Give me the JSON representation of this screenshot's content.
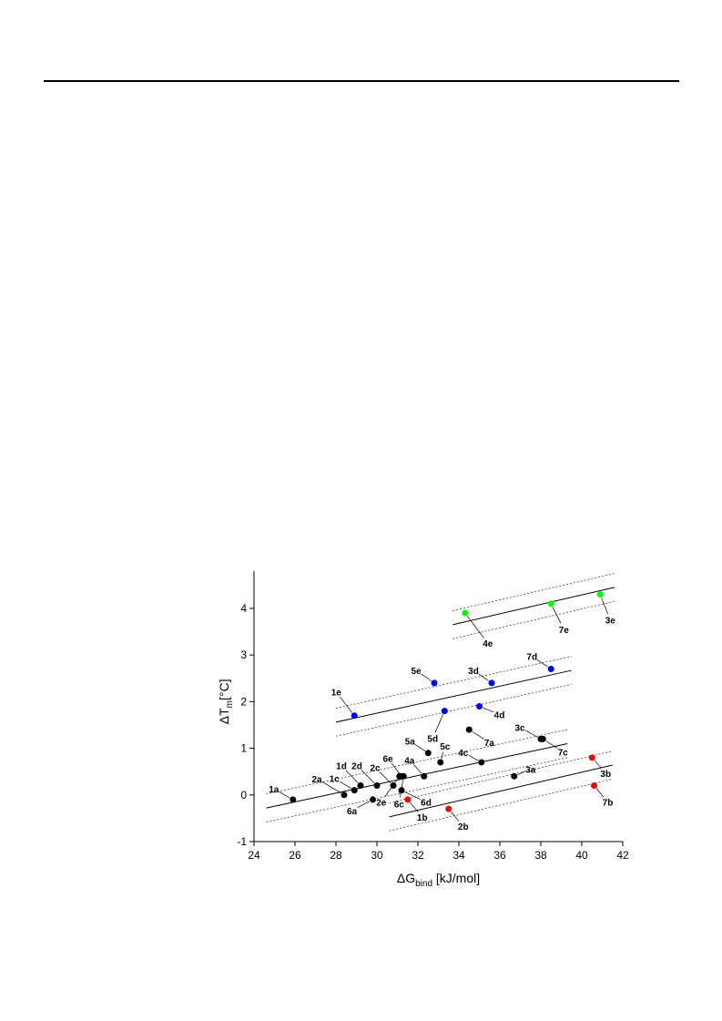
{
  "chart_data": {
    "type": "scatter",
    "x_label": {
      "main": "ΔG",
      "sub": "bind",
      "tail": " [kJ/mol]"
    },
    "y_label": {
      "main": "ΔT",
      "sub": "m",
      "tail": "[°C]"
    },
    "xlim": [
      24,
      42
    ],
    "ylim": [
      -1,
      4.8
    ],
    "xticks": [
      24,
      26,
      28,
      30,
      32,
      34,
      36,
      38,
      40,
      42
    ],
    "yticks": [
      -1,
      0,
      1,
      2,
      3,
      4
    ],
    "series": [
      {
        "color": "#000000",
        "x": [
          25.9,
          28.4,
          28.9,
          29.2,
          30.0,
          30.8,
          31.2,
          32.3,
          29.8,
          31.2,
          31.1,
          31.3,
          32.5,
          33.1,
          35.1,
          34.5,
          38.0,
          38.1,
          36.7
        ],
        "values": [
          -0.1,
          0.0,
          0.1,
          0.2,
          0.2,
          0.2,
          0.4,
          0.4,
          -0.1,
          0.1,
          0.4,
          0.4,
          0.9,
          0.7,
          0.7,
          1.4,
          1.2,
          1.2,
          0.4
        ],
        "labels": [
          "1a",
          "2a",
          "1c",
          "1d",
          "2d",
          "2c",
          "6e",
          "4a",
          "6a",
          "6d",
          "2e",
          "6c",
          "5a",
          "5c",
          "4c",
          "7a",
          "3c",
          "7c",
          "3a"
        ]
      },
      {
        "color": "#ff0000",
        "x": [
          31.5,
          33.5,
          40.5,
          40.6
        ],
        "values": [
          -0.1,
          -0.3,
          0.8,
          0.2
        ],
        "labels": [
          "1b",
          "2b",
          "3b",
          "7b"
        ]
      },
      {
        "color": "#0000ff",
        "x": [
          28.9,
          32.8,
          35.6,
          33.3,
          35.0,
          38.5
        ],
        "values": [
          1.7,
          2.4,
          2.4,
          1.8,
          1.9,
          2.7
        ],
        "labels": [
          "1e",
          "5e",
          "3d",
          "5d",
          "4d",
          "7d"
        ]
      },
      {
        "color": "#00ff00",
        "x": [
          34.3,
          38.5,
          40.9
        ],
        "values": [
          3.9,
          4.1,
          4.3
        ],
        "labels": [
          "4e",
          "7e",
          "3e"
        ]
      }
    ],
    "fits": [
      {
        "x": [
          24.6,
          39.3
        ],
        "y": [
          -0.28,
          1.1
        ],
        "band": 0.3
      },
      {
        "x": [
          30.6,
          41.5
        ],
        "y": [
          -0.47,
          0.64
        ],
        "band": 0.3
      },
      {
        "x": [
          28.0,
          39.5
        ],
        "y": [
          1.56,
          2.67
        ],
        "band": 0.3
      },
      {
        "x": [
          33.7,
          41.6
        ],
        "y": [
          3.65,
          4.45
        ],
        "band": 0.3
      }
    ]
  }
}
